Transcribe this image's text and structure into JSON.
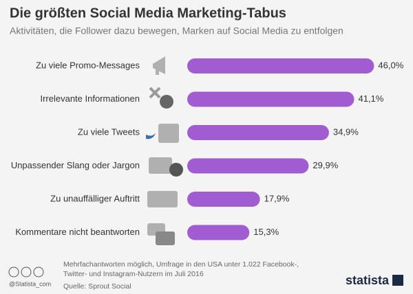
{
  "chart_data": {
    "type": "bar",
    "title": "Die größten Social Media Marketing-Tabus",
    "subtitle": "Aktivitäten, die Follower dazu bewegen, Marken auf Social Media zu entfolgen",
    "categories": [
      "Zu viele Promo-Messages",
      "Irrelevante Informationen",
      "Zu viele Tweets",
      "Unpassender Slang oder Jargon",
      "Zu unauffälliger Auftritt",
      "Kommentare nicht beantworten"
    ],
    "values": [
      46.0,
      41.1,
      34.9,
      29.9,
      17.9,
      15.3
    ],
    "value_labels": [
      "46,0%",
      "41,1%",
      "34,9%",
      "29,9%",
      "17,9%",
      "15,3%"
    ],
    "color": "#a05cd0"
  },
  "footer": {
    "notes": [
      "Mehrfachantworten möglich, Umfrage in den USA unter 1.022 Facebook-,",
      "Twitter- und Instagram-Nutzern im Juli 2016"
    ],
    "source": "Quelle: Sprout Social",
    "handle": "@Statista_com",
    "brand": "statista"
  }
}
